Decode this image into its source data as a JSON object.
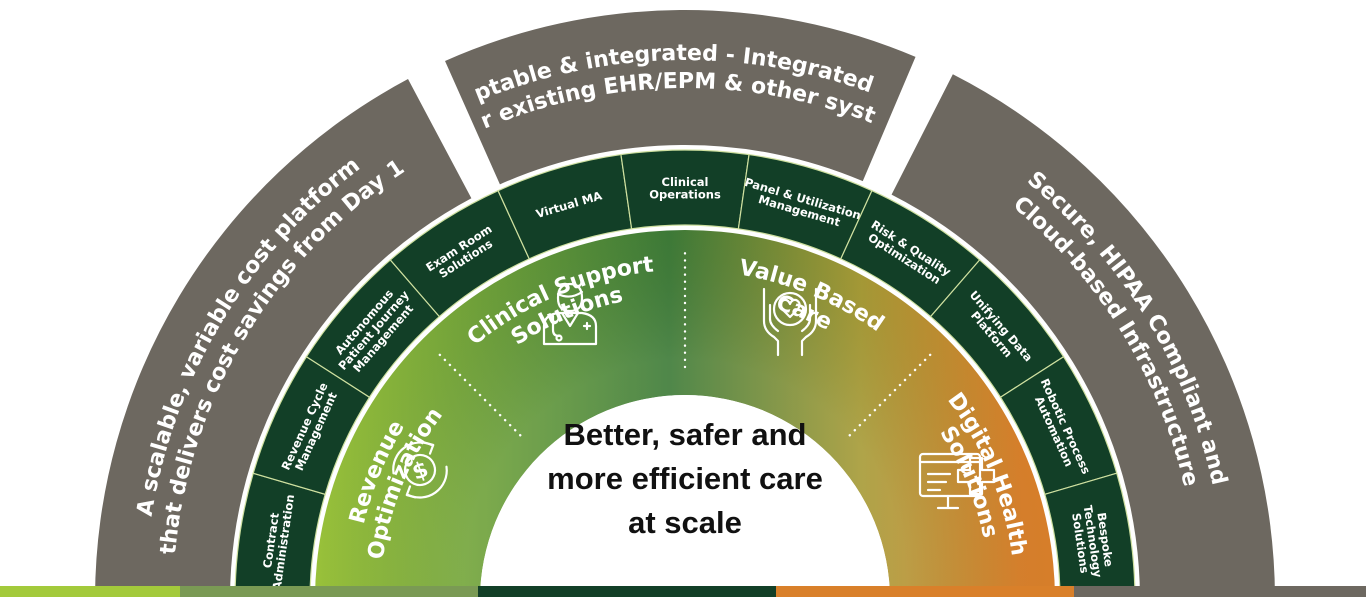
{
  "outer_band": [
    {
      "id": "left",
      "lines": [
        "A scalable, variable cost platform",
        "that delivers cost savings from Day 1"
      ]
    },
    {
      "id": "top",
      "lines": [
        "Adaptable & integrated - Integrated with",
        "your existing EHR/EPM & other systems"
      ]
    },
    {
      "id": "right",
      "lines": [
        "Secure, HIPAA Compliant and",
        "Cloud-based Infrastructure"
      ]
    }
  ],
  "solutions_ring": [
    {
      "lines": [
        "Contract",
        "Administration"
      ]
    },
    {
      "lines": [
        "Revenue Cycle",
        "Management"
      ]
    },
    {
      "lines": [
        "Autonomous",
        "Patient Journey",
        "Management"
      ]
    },
    {
      "lines": [
        "Exam Room",
        "Solutions"
      ]
    },
    {
      "lines": [
        "Virtual MA"
      ]
    },
    {
      "lines": [
        "Clinical",
        "Operations"
      ]
    },
    {
      "lines": [
        "Panel & Utilization",
        "Management"
      ]
    },
    {
      "lines": [
        "Risk & Quality",
        "Optimization"
      ]
    },
    {
      "lines": [
        "Unifying Data",
        "Platform"
      ]
    },
    {
      "lines": [
        "Robotic Process",
        "Automation"
      ]
    },
    {
      "lines": [
        "Bespoke",
        "Technology",
        "Solutions"
      ]
    }
  ],
  "pillars": [
    {
      "lines": [
        "Revenue",
        "Optimization"
      ],
      "icon": "dollar-cycle-icon"
    },
    {
      "lines": [
        "Clinical Support",
        "Solutions"
      ],
      "icon": "doctor-icon"
    },
    {
      "lines": [
        "Value Based",
        "Care"
      ],
      "icon": "heart-hands-icon"
    },
    {
      "lines": [
        "Digital Health",
        "Solutions"
      ],
      "icon": "digital-health-monitor-icon"
    }
  ],
  "center": {
    "lines": [
      "Better, safer and",
      "more efficient care",
      "at scale"
    ]
  },
  "colors": {
    "outer_band": "#6d6860",
    "ring": "#123f27",
    "ring_stroke": "#cfe0a0",
    "lime": "#a3ca3b",
    "green": "#3c7a36",
    "olive": "#a69a35",
    "orange": "#d9802a"
  },
  "bottom_strip": [
    "#a3ca3b",
    "#7a9a54",
    "#123f27",
    "#d9802a",
    "#6d6860"
  ]
}
